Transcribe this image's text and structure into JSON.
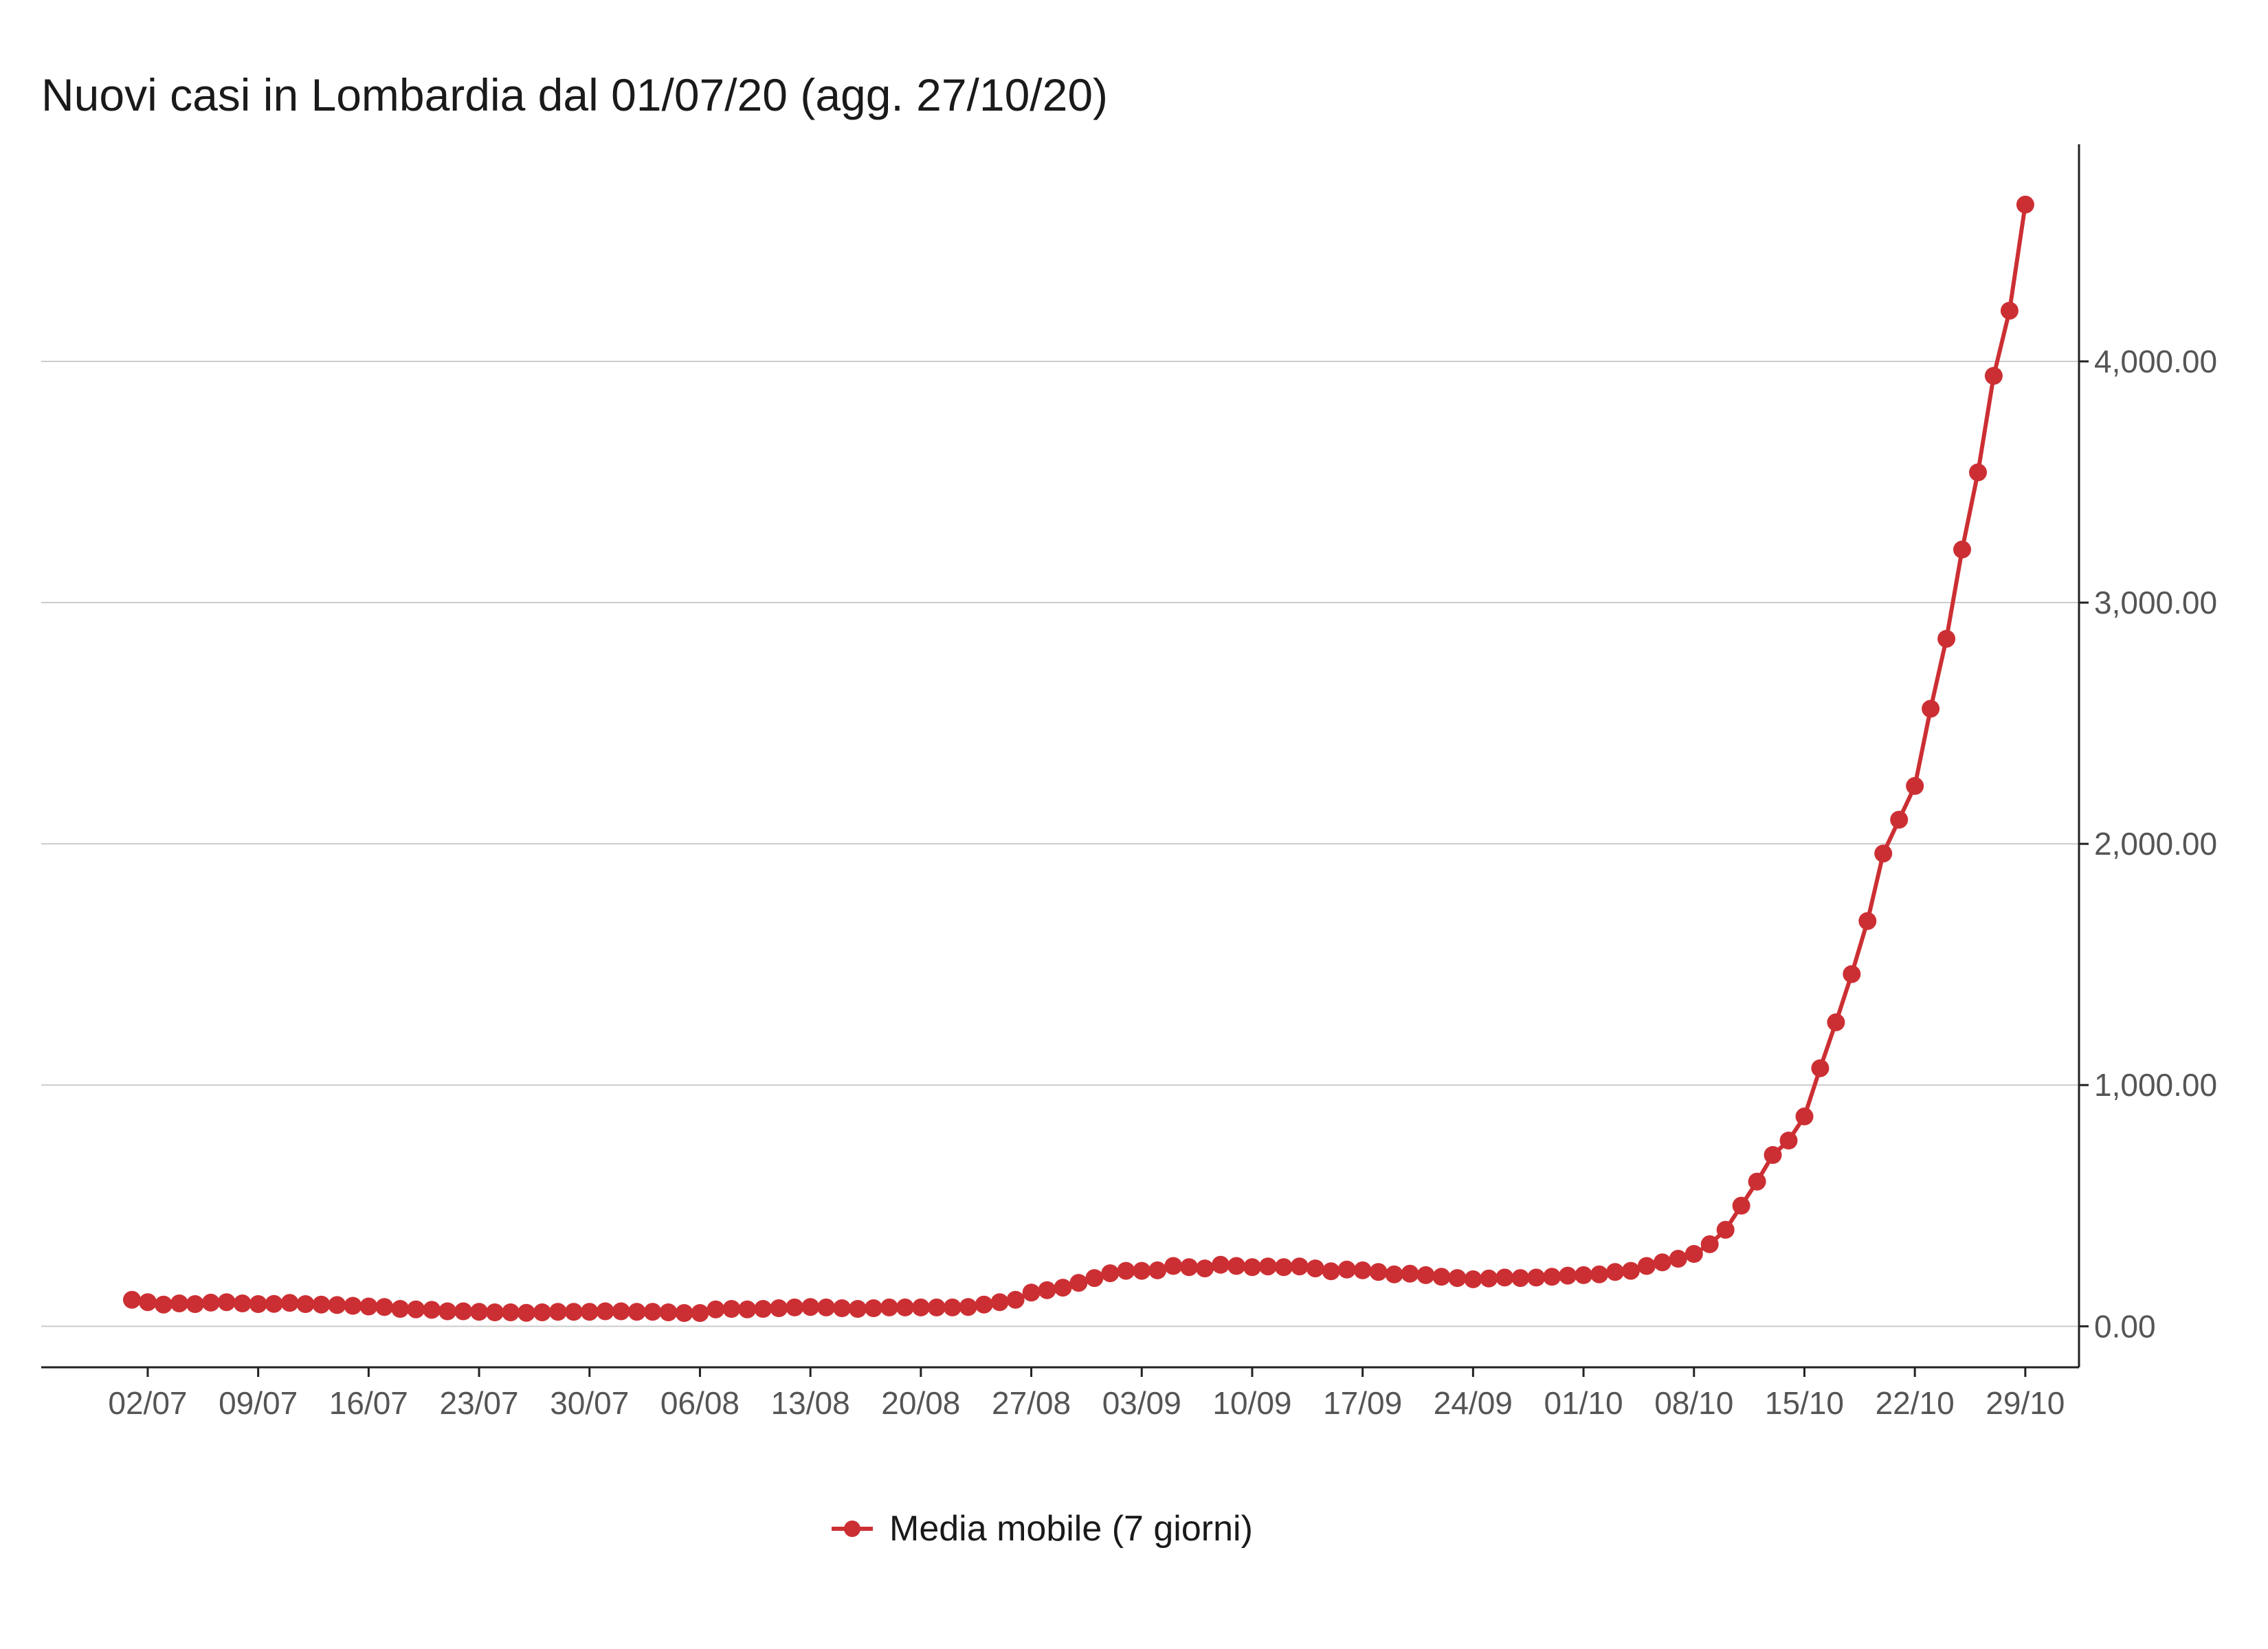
{
  "chart_data": {
    "type": "line",
    "title": "Nuovi casi in Lombardia dal 01/07/20 (agg. 27/10/20)",
    "xlabel": "",
    "ylabel": "",
    "x_start": "2020-07-01",
    "x_end": "2020-10-27",
    "x_ticks": [
      "02/07",
      "09/07",
      "16/07",
      "23/07",
      "30/07",
      "06/08",
      "13/08",
      "20/08",
      "27/08",
      "03/09",
      "10/09",
      "17/09",
      "24/09",
      "01/10",
      "08/10",
      "15/10",
      "22/10",
      "29/10"
    ],
    "y_ticks": [
      "0.00",
      "1,000.00",
      "2,000.00",
      "3,000.00",
      "4,000.00"
    ],
    "ylim": [
      -170,
      4900
    ],
    "y_axis_position": "right",
    "grid": "horizontal",
    "legend_position": "bottom",
    "series": [
      {
        "name": "Media mobile (7 giorni)",
        "color": "#cc2f33",
        "values": [
          110,
          100,
          90,
          95,
          92,
          98,
          100,
          95,
          92,
          93,
          97,
          92,
          90,
          88,
          85,
          82,
          80,
          72,
          70,
          68,
          62,
          62,
          60,
          58,
          58,
          56,
          58,
          60,
          60,
          60,
          62,
          62,
          60,
          60,
          58,
          55,
          55,
          70,
          72,
          70,
          72,
          75,
          78,
          80,
          78,
          75,
          72,
          75,
          78,
          78,
          78,
          78,
          78,
          80,
          90,
          100,
          110,
          140,
          150,
          160,
          180,
          200,
          220,
          230,
          230,
          232,
          250,
          245,
          240,
          255,
          250,
          245,
          248,
          245,
          248,
          240,
          228,
          235,
          232,
          225,
          215,
          218,
          212,
          205,
          200,
          195,
          198,
          202,
          200,
          202,
          205,
          210,
          212,
          215,
          225,
          230,
          250,
          265,
          280,
          300,
          340,
          400,
          500,
          600,
          710,
          770,
          870,
          1070,
          1260,
          1460,
          1680,
          1960,
          2100,
          2240,
          2560,
          2850,
          3220,
          3540,
          3940,
          4210,
          4650
        ]
      }
    ]
  }
}
